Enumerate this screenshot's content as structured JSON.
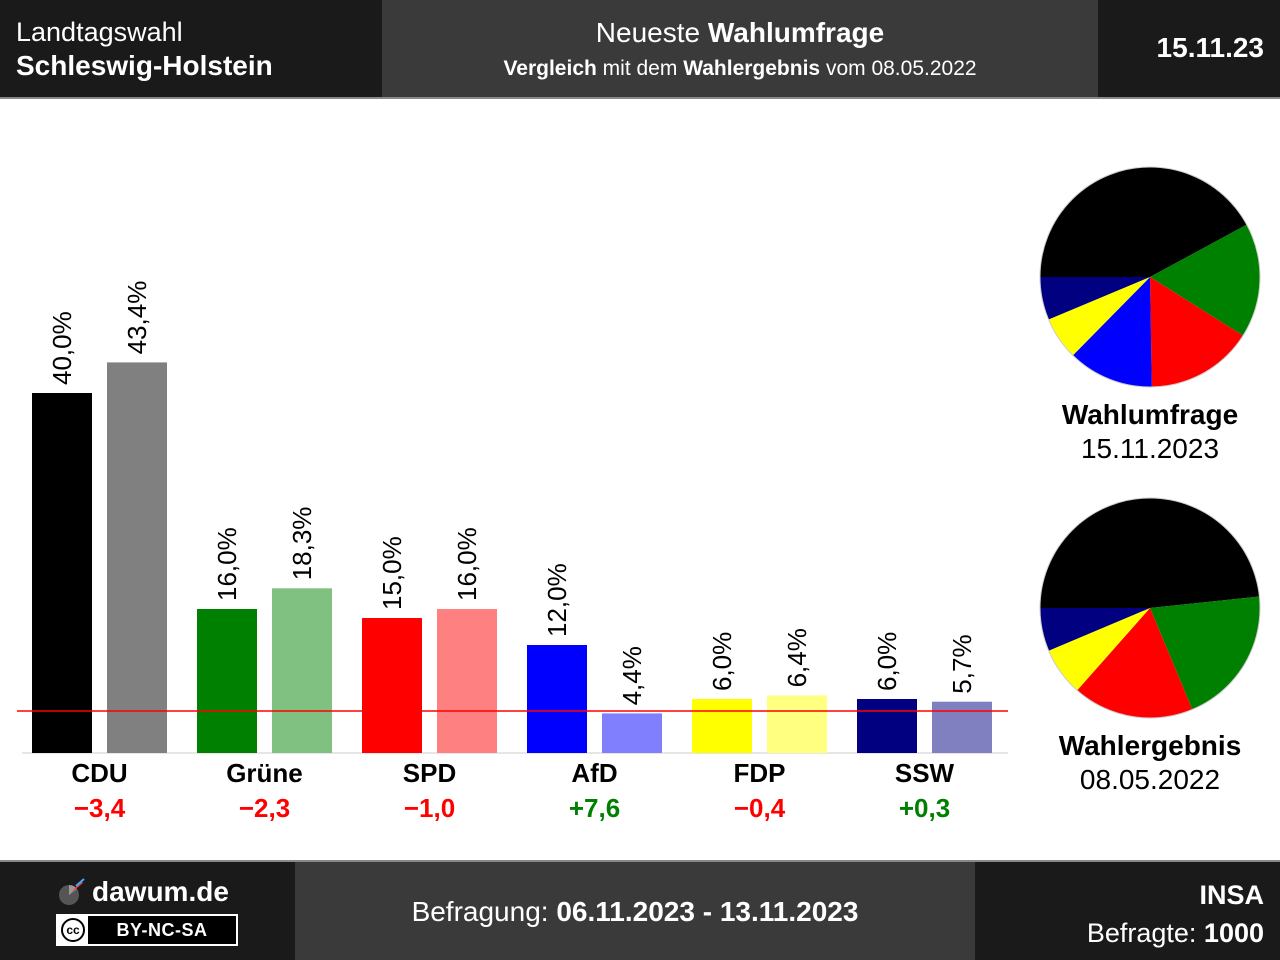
{
  "header": {
    "region_line1": "Landtagswahl",
    "region_line2": "Schleswig-Holstein",
    "title_plain": "Neueste ",
    "title_bold": "Wahlumfrage",
    "subtitle_bold1": "Vergleich",
    "subtitle_plain1": " mit dem ",
    "subtitle_bold2": "Wahlergebnis",
    "subtitle_plain2": " vom 08.05.2022",
    "date": "15.11.23"
  },
  "chart_data": {
    "type": "bar",
    "categories": [
      "CDU",
      "Grüne",
      "SPD",
      "AfD",
      "FDP",
      "SSW"
    ],
    "series": [
      {
        "values": [
          40.0,
          16.0,
          15.0,
          12.0,
          6.0,
          6.0
        ],
        "value_labels": [
          "40,0%",
          "16,0%",
          "15,0%",
          "12,0%",
          "6,0%",
          "6,0%"
        ],
        "colors": [
          "#000000",
          "#008000",
          "#ff0000",
          "#0000ff",
          "#ffff00",
          "#000080"
        ]
      },
      {
        "values": [
          43.4,
          18.3,
          16.0,
          4.4,
          6.4,
          5.7
        ],
        "value_labels": [
          "43,4%",
          "18,3%",
          "16,0%",
          "4,4%",
          "6,4%",
          "5,7%"
        ],
        "colors": [
          "#808080",
          "#80c080",
          "#ff8080",
          "#8080ff",
          "#ffff80",
          "#8080c0"
        ]
      }
    ],
    "differences": [
      "−3,4",
      "−2,3",
      "−1,0",
      "+7,6",
      "−0,4",
      "+0,3"
    ],
    "difference_colors": [
      "#ff0000",
      "#ff0000",
      "#ff0000",
      "#008000",
      "#ff0000",
      "#008000"
    ],
    "threshold_line": {
      "value": 5,
      "color": "#ff0000"
    },
    "ylim": [
      0,
      50
    ],
    "pies": [
      {
        "title": "Wahlumfrage",
        "date": "15.11.2023",
        "values": [
          40.0,
          16.0,
          15.0,
          12.0,
          6.0,
          6.0
        ],
        "colors": [
          "#000000",
          "#008000",
          "#ff0000",
          "#0000ff",
          "#ffff00",
          "#000080"
        ]
      },
      {
        "title": "Wahlergebnis",
        "date": "08.05.2022",
        "values": [
          43.4,
          18.3,
          16.0,
          6.4,
          5.7
        ],
        "colors": [
          "#000000",
          "#008000",
          "#ff0000",
          "#ffff00",
          "#000080"
        ]
      }
    ]
  },
  "footer": {
    "brand": "dawum.de",
    "license": "BY-NC-SA",
    "cc": "cc",
    "period_label": "Befragung: ",
    "period_value": "06.11.2023 - 13.11.2023",
    "institute": "INSA",
    "respondents_label": "Befragte: ",
    "respondents_value": "1000"
  }
}
